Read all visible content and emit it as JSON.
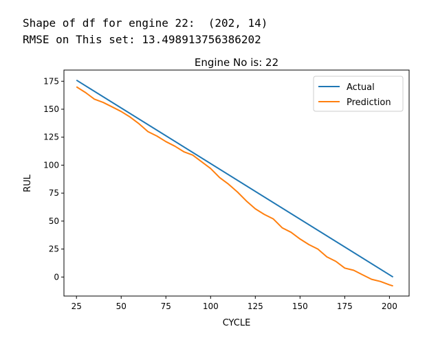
{
  "output": {
    "line1": "Shape of df for engine 22:  (202, 14)",
    "line2": "RMSE on This set: 13.498913756386202"
  },
  "chart_data": {
    "type": "line",
    "title": "Engine No is: 22",
    "xlabel": "CYCLE",
    "ylabel": "RUL",
    "xlim": [
      18,
      211
    ],
    "ylim": [
      -17,
      185
    ],
    "xticks": [
      25,
      50,
      75,
      100,
      125,
      150,
      175,
      200
    ],
    "yticks": [
      0,
      25,
      50,
      75,
      100,
      125,
      150,
      175
    ],
    "legend_position": "top-right",
    "grid": false,
    "series": [
      {
        "name": "Actual",
        "color": "#1f77b4",
        "x": [
          25,
          202
        ],
        "y": [
          176,
          0
        ]
      },
      {
        "name": "Prediction",
        "color": "#ff7f0e",
        "x": [
          25,
          30,
          35,
          40,
          45,
          50,
          55,
          60,
          65,
          70,
          75,
          80,
          85,
          90,
          95,
          100,
          105,
          110,
          115,
          120,
          125,
          130,
          135,
          140,
          145,
          150,
          155,
          160,
          165,
          170,
          175,
          180,
          185,
          190,
          195,
          200,
          202
        ],
        "y": [
          170,
          165,
          159,
          156,
          152,
          148,
          143,
          137,
          130,
          126,
          121,
          117,
          112,
          109,
          103,
          97,
          89,
          83,
          76,
          68,
          61,
          56,
          52,
          44,
          40,
          34,
          29,
          25,
          18,
          14,
          8,
          6,
          2,
          -2,
          -4,
          -7,
          -8
        ]
      }
    ]
  }
}
